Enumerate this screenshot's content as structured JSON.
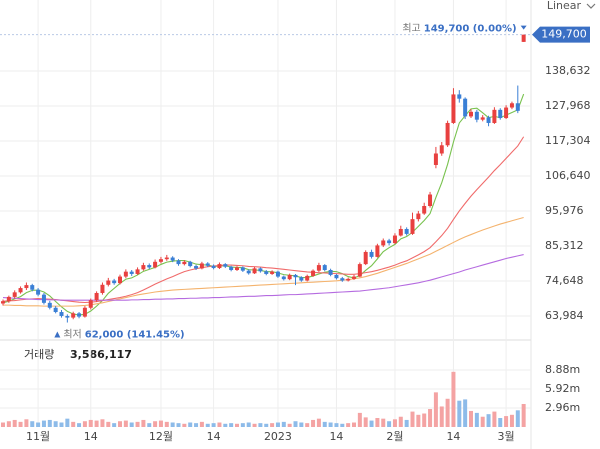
{
  "chart_data": {
    "type": "candlestick",
    "scale_label": "Linear",
    "categories": [
      null,
      null,
      null,
      null,
      null,
      null,
      "11월",
      null,
      null,
      null,
      null,
      null,
      null,
      null,
      null,
      "14",
      null,
      null,
      null,
      null,
      null,
      null,
      null,
      null,
      null,
      null,
      null,
      "12월",
      null,
      null,
      null,
      null,
      null,
      null,
      null,
      null,
      "14",
      null,
      null,
      null,
      null,
      null,
      null,
      null,
      null,
      null,
      null,
      "2023",
      null,
      null,
      null,
      null,
      null,
      null,
      null,
      null,
      null,
      "14",
      null,
      null,
      null,
      null,
      null,
      null,
      null,
      null,
      null,
      "2월",
      null,
      null,
      null,
      null,
      null,
      null,
      null,
      null,
      null,
      "14",
      null,
      null,
      null,
      null,
      null,
      null,
      null,
      null,
      "3월",
      null,
      null,
      null
    ],
    "candles": [
      [
        67800,
        69000,
        67200,
        68500
      ],
      [
        68500,
        70200,
        68000,
        69800
      ],
      [
        69800,
        71800,
        69300,
        71200
      ],
      [
        71200,
        73000,
        70800,
        72500
      ],
      [
        72500,
        74200,
        71900,
        73400
      ],
      [
        73400,
        73800,
        71500,
        72000
      ],
      [
        72000,
        72500,
        70000,
        70500
      ],
      [
        70500,
        71000,
        67500,
        68000
      ],
      [
        68000,
        68600,
        66000,
        66500
      ],
      [
        66500,
        67000,
        64800,
        65200
      ],
      [
        65200,
        65800,
        63500,
        64000
      ],
      [
        64000,
        64500,
        62000,
        63500
      ],
      [
        63500,
        65300,
        63000,
        64800
      ],
      [
        64800,
        65200,
        63300,
        63800
      ],
      [
        63800,
        67000,
        63500,
        66500
      ],
      [
        66500,
        69300,
        66000,
        68800
      ],
      [
        68800,
        71500,
        68300,
        71000
      ],
      [
        71000,
        74200,
        70500,
        73500
      ],
      [
        73500,
        75600,
        73000,
        74800
      ],
      [
        74800,
        75300,
        73500,
        74000
      ],
      [
        74000,
        76600,
        73600,
        76000
      ],
      [
        76000,
        78200,
        75500,
        77500
      ],
      [
        77500,
        78000,
        76200,
        76800
      ],
      [
        76800,
        78800,
        76500,
        78200
      ],
      [
        78200,
        80200,
        77800,
        79500
      ],
      [
        79500,
        80000,
        78300,
        78800
      ],
      [
        78800,
        81200,
        78500,
        80500
      ],
      [
        80500,
        82000,
        80000,
        81300
      ],
      [
        81300,
        82600,
        80800,
        81800
      ],
      [
        81800,
        82200,
        80400,
        80900
      ],
      [
        80900,
        81300,
        79300,
        79800
      ],
      [
        79800,
        81000,
        79400,
        80500
      ],
      [
        80500,
        80800,
        78800,
        79200
      ],
      [
        79200,
        79600,
        78000,
        78500
      ],
      [
        78500,
        80500,
        78200,
        80000
      ],
      [
        80000,
        80400,
        78900,
        79300
      ],
      [
        79300,
        79700,
        78200,
        78600
      ],
      [
        78600,
        80300,
        78300,
        79800
      ],
      [
        79800,
        80100,
        78600,
        79000
      ],
      [
        79000,
        79300,
        77600,
        78000
      ],
      [
        78000,
        79200,
        77700,
        78800
      ],
      [
        78800,
        79100,
        77400,
        77800
      ],
      [
        77800,
        78200,
        76600,
        77000
      ],
      [
        77000,
        78900,
        76800,
        78500
      ],
      [
        78500,
        78800,
        77200,
        77600
      ],
      [
        77600,
        78000,
        76400,
        76800
      ],
      [
        76800,
        77900,
        76500,
        77500
      ],
      [
        77500,
        77800,
        75600,
        76000
      ],
      [
        76000,
        76300,
        74800,
        75200
      ],
      [
        75200,
        76900,
        74900,
        76500
      ],
      [
        76500,
        76800,
        73400,
        75800
      ],
      [
        75800,
        76100,
        74400,
        74800
      ],
      [
        74800,
        76600,
        74500,
        76200
      ],
      [
        76200,
        78200,
        75900,
        77800
      ],
      [
        77800,
        80200,
        77400,
        79500
      ],
      [
        79500,
        79800,
        77600,
        78000
      ],
      [
        78000,
        78400,
        76100,
        76500
      ],
      [
        76500,
        76800,
        75100,
        75500
      ],
      [
        75500,
        75900,
        74400,
        74800
      ],
      [
        74800,
        75700,
        74500,
        75300
      ],
      [
        75300,
        76500,
        75000,
        76000
      ],
      [
        76000,
        80300,
        75800,
        79800
      ],
      [
        79800,
        84000,
        79500,
        83500
      ],
      [
        83500,
        84200,
        81500,
        82000
      ],
      [
        82000,
        86000,
        81800,
        85500
      ],
      [
        85500,
        87600,
        85000,
        87000
      ],
      [
        87000,
        87500,
        85500,
        86200
      ],
      [
        86200,
        89200,
        85900,
        88500
      ],
      [
        88500,
        91500,
        88200,
        90500
      ],
      [
        90500,
        91000,
        88500,
        89000
      ],
      [
        89000,
        95500,
        88700,
        93500
      ],
      [
        93500,
        96000,
        92800,
        95200
      ],
      [
        95200,
        98500,
        94800,
        97500
      ],
      [
        97500,
        101800,
        97000,
        101000
      ],
      [
        110000,
        115500,
        109000,
        113500
      ],
      [
        113500,
        117000,
        112800,
        116000
      ],
      [
        116000,
        123500,
        115500,
        122800
      ],
      [
        122800,
        133400,
        122500,
        131500
      ],
      [
        131500,
        132800,
        129000,
        130200
      ],
      [
        130200,
        130600,
        124000,
        124800
      ],
      [
        124800,
        127000,
        124300,
        126200
      ],
      [
        126200,
        126800,
        123000,
        123800
      ],
      [
        123800,
        125200,
        123300,
        124500
      ],
      [
        124500,
        125000,
        121800,
        122800
      ],
      [
        122800,
        127600,
        122500,
        126800
      ],
      [
        126800,
        127300,
        123800,
        124300
      ],
      [
        124300,
        128200,
        124000,
        127500
      ],
      [
        127500,
        129300,
        127000,
        128800
      ],
      [
        128800,
        134200,
        125800,
        126500
      ],
      [
        147500,
        149700,
        147500,
        149700
      ]
    ],
    "up_color": "#e8403f",
    "down_color": "#3a7fd5",
    "series": [
      {
        "color": "#78c24e",
        "values": [
          68000,
          68500,
          69200,
          69900,
          71100,
          71800,
          71900,
          71300,
          70100,
          68400,
          66800,
          65400,
          64600,
          64300,
          64500,
          65500,
          67000,
          68700,
          70900,
          72400,
          73900,
          75200,
          75600,
          76500,
          77600,
          78200,
          78800,
          79700,
          80400,
          80700,
          80900,
          80900,
          80400,
          79800,
          79600,
          79500,
          79100,
          79200,
          79300,
          78900,
          78800,
          78700,
          78100,
          78000,
          77900,
          77500,
          77500,
          77100,
          76600,
          76400,
          76200,
          75700,
          75700,
          76200,
          76800,
          77300,
          77600,
          77500,
          76900,
          76000,
          75600,
          76300,
          77900,
          79300,
          81400,
          83600,
          84800,
          85800,
          87500,
          88200,
          89500,
          91300,
          93100,
          95200,
          100100,
          104600,
          110200,
          117000,
          122800,
          125000,
          127100,
          127300,
          125900,
          124400,
          124800,
          124400,
          125200,
          126000,
          126800,
          131600
        ]
      },
      {
        "color": "#f06b6b",
        "values": [
          68500,
          68600,
          68700,
          68900,
          69100,
          69200,
          69300,
          69200,
          69100,
          69000,
          68800,
          68600,
          68400,
          68200,
          68100,
          68200,
          68400,
          68700,
          69000,
          69300,
          69600,
          70000,
          70500,
          71100,
          71900,
          72800,
          73700,
          74500,
          75300,
          76000,
          76800,
          77500,
          78000,
          78400,
          78700,
          79000,
          79200,
          79400,
          79500,
          79500,
          79400,
          79300,
          79100,
          79000,
          78900,
          78700,
          78600,
          78400,
          78200,
          78000,
          77800,
          77600,
          77400,
          77300,
          77200,
          77100,
          77000,
          76900,
          76800,
          76700,
          76700,
          76900,
          77200,
          77500,
          77900,
          78400,
          78900,
          79500,
          80200,
          80800,
          81700,
          82600,
          83600,
          84800,
          86600,
          88500,
          90700,
          93400,
          96000,
          98300,
          100500,
          102500,
          104400,
          106300,
          108300,
          110100,
          112000,
          113900,
          115800,
          118600
        ]
      },
      {
        "color": "#f4b36e",
        "values": [
          67300,
          67300,
          67200,
          67200,
          67100,
          67100,
          67100,
          67000,
          67000,
          67000,
          67000,
          67000,
          67000,
          67100,
          67200,
          67400,
          67700,
          68000,
          68400,
          68800,
          69200,
          69600,
          70000,
          70400,
          70700,
          71000,
          71300,
          71500,
          71700,
          71900,
          72000,
          72100,
          72200,
          72300,
          72400,
          72500,
          72600,
          72700,
          72800,
          72900,
          73000,
          73100,
          73200,
          73300,
          73400,
          73500,
          73600,
          73700,
          73800,
          73900,
          74000,
          74100,
          74200,
          74300,
          74400,
          74500,
          74600,
          74700,
          74900,
          75100,
          75300,
          75600,
          76000,
          76500,
          77000,
          77600,
          78200,
          78800,
          79400,
          80000,
          80700,
          81400,
          82100,
          82800,
          83700,
          84600,
          85500,
          86400,
          87300,
          88100,
          88800,
          89500,
          90200,
          90800,
          91400,
          92000,
          92500,
          93000,
          93500,
          94000
        ]
      },
      {
        "color": "#b56be0",
        "values": [
          69600,
          69500,
          69400,
          69300,
          69200,
          69100,
          69000,
          69000,
          68900,
          68900,
          68800,
          68800,
          68800,
          68800,
          68800,
          68800,
          68800,
          68800,
          68800,
          68800,
          68800,
          68800,
          68900,
          68900,
          69000,
          69000,
          69100,
          69100,
          69200,
          69200,
          69300,
          69300,
          69400,
          69400,
          69500,
          69500,
          69600,
          69600,
          69700,
          69800,
          69800,
          69900,
          70000,
          70000,
          70100,
          70200,
          70200,
          70300,
          70400,
          70500,
          70500,
          70600,
          70700,
          70800,
          70900,
          71000,
          71100,
          71200,
          71300,
          71400,
          71500,
          71600,
          71800,
          72000,
          72200,
          72400,
          72600,
          72900,
          73200,
          73500,
          73800,
          74100,
          74500,
          74900,
          75400,
          75900,
          76400,
          76900,
          77400,
          78000,
          78500,
          79000,
          79500,
          80000,
          80500,
          81000,
          81500,
          81900,
          82300,
          82700
        ]
      }
    ],
    "ylim": [
      58200,
      154170
    ],
    "yticks": [
      {
        "value": 138632,
        "label": "138,632"
      },
      {
        "value": 127968,
        "label": "127,968"
      },
      {
        "value": 117304,
        "label": "117,304"
      },
      {
        "value": 106640,
        "label": "106,640"
      },
      {
        "value": 95976,
        "label": "95,976"
      },
      {
        "value": 85312,
        "label": "85,312"
      },
      {
        "value": 74648,
        "label": "74,648"
      },
      {
        "value": 63984,
        "label": "63,984"
      }
    ],
    "grid": true,
    "annotations": {
      "high": {
        "label": "최고",
        "text": "149,700 (0.00%)"
      },
      "low": {
        "label": "최저",
        "text": "62,000 (141.45%)"
      },
      "last_price": "149,700"
    },
    "volume_title": "거래량",
    "volume_label": "3,586,117",
    "volume": [
      700000,
      900000,
      1100000,
      800000,
      1200000,
      900000,
      700000,
      1000000,
      1100000,
      900000,
      700000,
      1300000,
      800000,
      600000,
      900000,
      1100000,
      1000000,
      1200000,
      800000,
      600000,
      900000,
      1000000,
      700000,
      800000,
      1100000,
      600000,
      900000,
      1000000,
      800000,
      700000,
      600000,
      500000,
      700000,
      600000,
      800000,
      500000,
      600000,
      700000,
      500000,
      600000,
      500000,
      600000,
      700000,
      500000,
      600000,
      500000,
      600000,
      700000,
      800000,
      500000,
      900000,
      700000,
      600000,
      1100000,
      1300000,
      800000,
      700000,
      600000,
      500000,
      600000,
      700000,
      2200000,
      1500000,
      1000000,
      1400000,
      1300000,
      900000,
      1200000,
      1600000,
      1100000,
      2400000,
      1900000,
      2100000,
      2800000,
      5400000,
      3200000,
      4400000,
      8600000,
      4100000,
      4300000,
      2500000,
      2200000,
      1600000,
      2000000,
      2400000,
      1400000,
      1700000,
      1900000,
      2600000,
      3586117
    ],
    "volume_up_color": "#f4a3a3",
    "volume_down_color": "#8dbbe9",
    "vlim": [
      0,
      13090000
    ],
    "vticks": [
      {
        "value": 8880000,
        "label": "8.88m"
      },
      {
        "value": 5920000,
        "label": "5.92m"
      },
      {
        "value": 2960000,
        "label": "2.96m"
      }
    ]
  }
}
